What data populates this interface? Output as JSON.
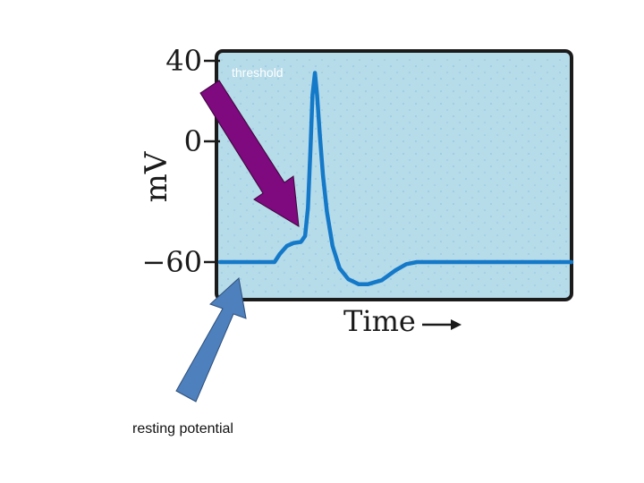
{
  "colors": {
    "plot_background": "#b6dbe9",
    "plot_border": "#1b1b1b",
    "trace": "#1479c8",
    "grid_dots": "#8fc6df",
    "threshold_arrow": "#7f097f",
    "resting_arrow": "#4e80bd"
  },
  "chart_data": {
    "type": "line",
    "ylabel": "mV",
    "xlabel": "Time",
    "ylim": [
      -80,
      45
    ],
    "xlim": [
      0,
      100
    ],
    "yticks": [
      {
        "value": 40,
        "label": "40"
      },
      {
        "value": 0,
        "label": "0"
      },
      {
        "value": -60,
        "label": "−60"
      }
    ],
    "grid": true,
    "series": [
      {
        "x": [
          0,
          14,
          15.5,
          17,
          19,
          21,
          23,
          24.2,
          25,
          25.7,
          26.3,
          27,
          27.6,
          28.4,
          29.3,
          30.4,
          32,
          34,
          36.5,
          39.5,
          42,
          46,
          50,
          53,
          56,
          60,
          100
        ],
        "y": [
          -60,
          -60,
          -60,
          -56,
          -52,
          -50.5,
          -50,
          -47,
          -33,
          -5,
          23,
          34,
          23,
          3,
          -17,
          -35,
          -52,
          -63,
          -68.5,
          -71,
          -71,
          -69,
          -64,
          -61,
          -60,
          -60,
          -60
        ]
      }
    ],
    "annotations": [
      {
        "text": "threshold",
        "x": 25,
        "y": -50,
        "arrow": true
      },
      {
        "text": "resting potential",
        "x": 5,
        "y": -60,
        "arrow": true
      }
    ]
  }
}
